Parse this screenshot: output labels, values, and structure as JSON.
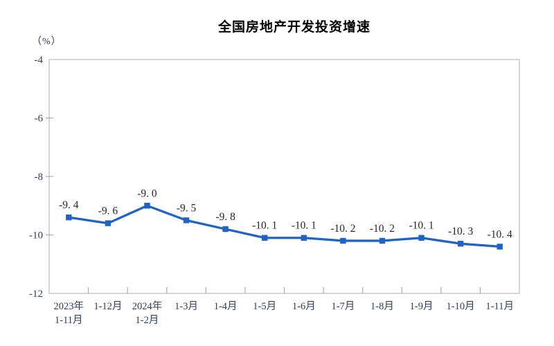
{
  "chart_data": {
    "type": "line",
    "title": "全国房地产开发投资增速",
    "unit_label": "（%）",
    "categories": [
      {
        "lines": [
          "2023年",
          "1-11月"
        ]
      },
      {
        "lines": [
          "1-12月"
        ]
      },
      {
        "lines": [
          "2024年",
          "1-2月"
        ]
      },
      {
        "lines": [
          "1-3月"
        ]
      },
      {
        "lines": [
          "1-4月"
        ]
      },
      {
        "lines": [
          "1-5月"
        ]
      },
      {
        "lines": [
          "1-6月"
        ]
      },
      {
        "lines": [
          "1-7月"
        ]
      },
      {
        "lines": [
          "1-8月"
        ]
      },
      {
        "lines": [
          "1-9月"
        ]
      },
      {
        "lines": [
          "1-10月"
        ]
      },
      {
        "lines": [
          "1-11月"
        ]
      }
    ],
    "values": [
      -9.4,
      -9.6,
      -9.0,
      -9.5,
      -9.8,
      -10.1,
      -10.1,
      -10.2,
      -10.2,
      -10.1,
      -10.3,
      -10.4
    ],
    "data_labels": [
      "-9. 4",
      "-9. 6",
      "-9. 0",
      "-9. 5",
      "-9. 8",
      "-10. 1",
      "-10. 1",
      "-10. 2",
      "-10. 2",
      "-10. 1",
      "-10. 3",
      "-10. 4"
    ],
    "ylim": [
      -12,
      -4
    ],
    "yticks": [
      -4,
      -6,
      -8,
      -10,
      -12
    ],
    "xlabel": "",
    "ylabel": "（%）",
    "grid": false,
    "legend": "none",
    "colors": {
      "line": "#1f63c6",
      "marker": "#1f63c6",
      "axis_border": "#c9c9c9",
      "tick": "#aaaaaa",
      "axis_text": "#30405c",
      "data_label_text": "#262626",
      "title_text": "#000000",
      "background": "#ffffff"
    }
  }
}
